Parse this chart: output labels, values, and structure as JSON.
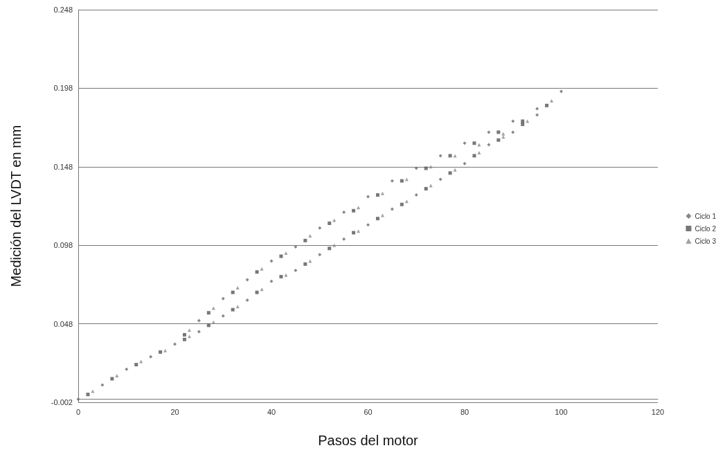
{
  "chart_data": {
    "type": "scatter",
    "xlabel": "Pasos del motor",
    "ylabel": "Medición del LVDT en mm",
    "xlim": [
      0,
      120
    ],
    "xticks": [
      0,
      20,
      40,
      60,
      80,
      100,
      120
    ],
    "ylim": [
      -0.002,
      0.248
    ],
    "yticks": [
      -0.002,
      0.048,
      0.098,
      0.148,
      0.198,
      0.248
    ],
    "grid": "y",
    "legend": "right",
    "series": [
      {
        "name": "Ciclo 1",
        "color": "#6a6a6a",
        "marker": "diamond",
        "x": [
          0,
          5,
          10,
          15,
          20,
          25,
          30,
          35,
          40,
          45,
          50,
          55,
          60,
          65,
          70,
          75,
          80,
          85,
          90,
          95,
          100,
          95,
          90,
          85,
          80,
          75,
          70,
          65,
          60,
          55,
          50,
          45,
          40,
          35,
          30,
          25
        ],
        "values": [
          0,
          0.009,
          0.019,
          0.027,
          0.035,
          0.043,
          0.053,
          0.063,
          0.075,
          0.082,
          0.092,
          0.102,
          0.111,
          0.121,
          0.13,
          0.14,
          0.15,
          0.162,
          0.17,
          0.181,
          0.196,
          0.185,
          0.177,
          0.17,
          0.163,
          0.155,
          0.147,
          0.139,
          0.129,
          0.119,
          0.109,
          0.097,
          0.088,
          0.076,
          0.064,
          0.05
        ]
      },
      {
        "name": "Ciclo 2",
        "color": "#555555",
        "marker": "square",
        "x": [
          2,
          7,
          12,
          17,
          22,
          27,
          32,
          37,
          42,
          47,
          52,
          57,
          62,
          67,
          72,
          77,
          82,
          87,
          92,
          97,
          92,
          87,
          82,
          77,
          72,
          67,
          62,
          57,
          52,
          47,
          42,
          37,
          32,
          27,
          22
        ],
        "values": [
          0.003,
          0.013,
          0.022,
          0.03,
          0.038,
          0.047,
          0.057,
          0.068,
          0.078,
          0.086,
          0.096,
          0.106,
          0.115,
          0.124,
          0.134,
          0.144,
          0.155,
          0.165,
          0.175,
          0.187,
          0.177,
          0.17,
          0.163,
          0.155,
          0.147,
          0.139,
          0.13,
          0.12,
          0.112,
          0.101,
          0.091,
          0.081,
          0.068,
          0.055,
          0.041
        ]
      },
      {
        "name": "Ciclo 3",
        "color": "#8a8a8a",
        "marker": "triangle",
        "x": [
          3,
          8,
          13,
          18,
          23,
          28,
          33,
          38,
          43,
          48,
          53,
          58,
          63,
          68,
          73,
          78,
          83,
          88,
          93,
          98,
          88,
          83,
          78,
          73,
          68,
          63,
          58,
          53,
          48,
          43,
          38,
          33,
          28,
          23
        ],
        "values": [
          0.005,
          0.015,
          0.024,
          0.031,
          0.04,
          0.049,
          0.059,
          0.07,
          0.079,
          0.088,
          0.098,
          0.107,
          0.117,
          0.126,
          0.136,
          0.146,
          0.157,
          0.167,
          0.177,
          0.19,
          0.169,
          0.162,
          0.155,
          0.148,
          0.14,
          0.131,
          0.122,
          0.114,
          0.104,
          0.093,
          0.083,
          0.071,
          0.058,
          0.044
        ]
      }
    ]
  }
}
